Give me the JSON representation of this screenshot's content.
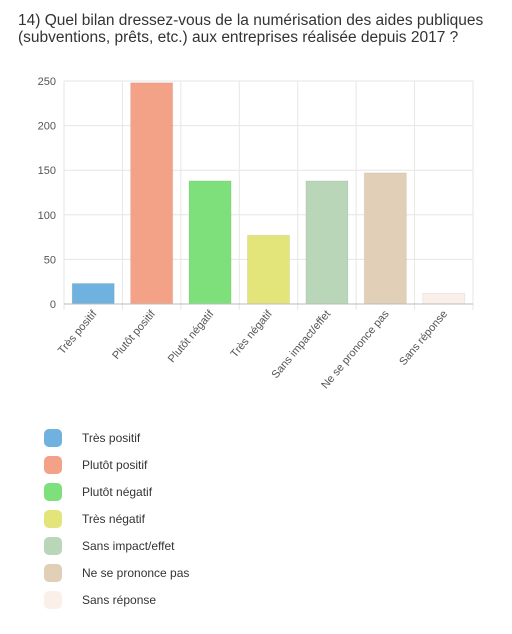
{
  "chart_data": {
    "type": "bar",
    "title": "14) Quel bilan dressez-vous de la numérisation des aides publiques (subventions, prêts, etc.) aux entreprises réalisée depuis 2017 ?",
    "categories": [
      "Très positif",
      "Plutôt positif",
      "Plutôt négatif",
      "Très négatif",
      "Sans impact/effet",
      "Ne se prononce pas",
      "Sans réponse"
    ],
    "values": [
      23,
      248,
      138,
      77,
      138,
      147,
      12
    ],
    "colors": [
      "#6fb1df",
      "#f3a187",
      "#7de07a",
      "#e3e47a",
      "#b9d6b8",
      "#e1cfb7",
      "#fbefe9"
    ],
    "ylim": [
      0,
      250
    ],
    "yticks": [
      0,
      50,
      100,
      150,
      200,
      250
    ],
    "grid": true,
    "legend_position": "bottom-left"
  }
}
